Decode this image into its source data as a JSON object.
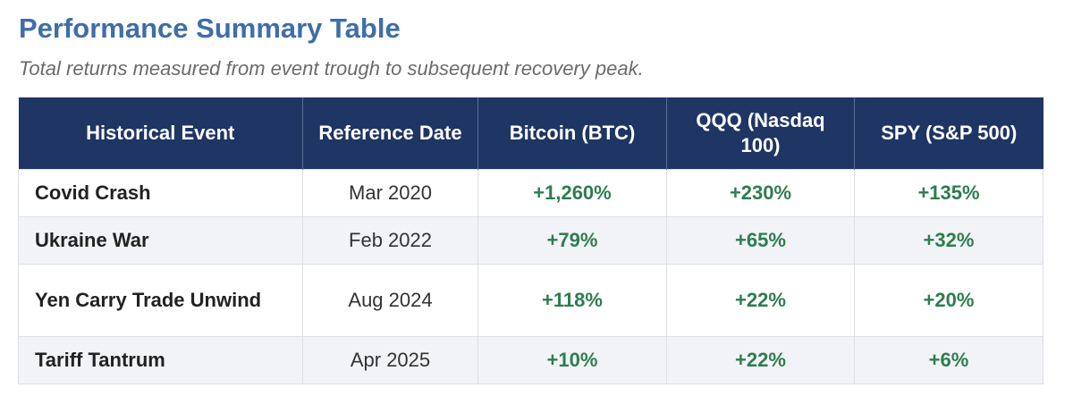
{
  "title": "Performance Summary Table",
  "subtitle": "Total returns measured from event trough to subsequent recovery peak.",
  "colors": {
    "title": "#3f6ea8",
    "header_bg": "#1f3563",
    "positive": "#2e7d4f",
    "alt_row": "#f2f3f6"
  },
  "table": {
    "headers": [
      "Historical Event",
      "Reference Date",
      "Bitcoin (BTC)",
      "QQQ (Nasdaq 100)",
      "SPY (S&P 500)"
    ],
    "rows": [
      {
        "event": "Covid Crash",
        "date": "Mar 2020",
        "btc": "+1,260%",
        "qqq": "+230%",
        "spy": "+135%"
      },
      {
        "event": "Ukraine War",
        "date": "Feb 2022",
        "btc": "+79%",
        "qqq": "+65%",
        "spy": "+32%"
      },
      {
        "event": "Yen Carry Trade Unwind",
        "date": "Aug 2024",
        "btc": "+118%",
        "qqq": "+22%",
        "spy": "+20%"
      },
      {
        "event": "Tariff Tantrum",
        "date": "Apr 2025",
        "btc": "+10%",
        "qqq": "+22%",
        "spy": "+6%"
      }
    ]
  }
}
